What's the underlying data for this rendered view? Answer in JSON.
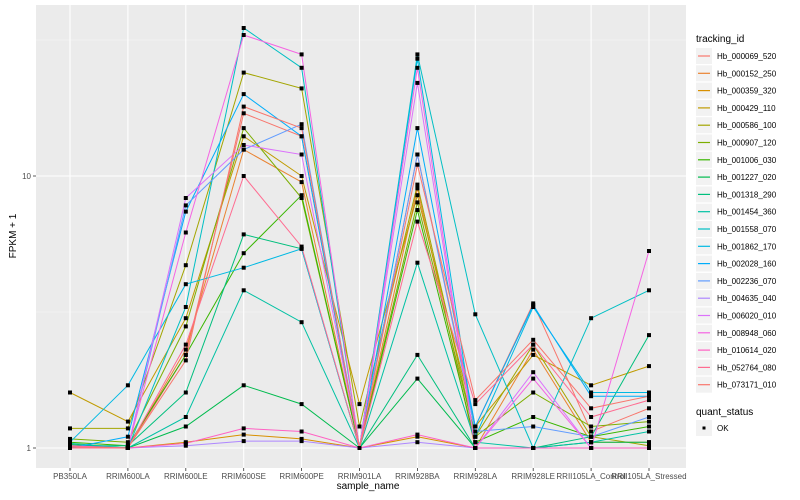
{
  "chart_data": {
    "type": "line",
    "xlabel": "sample_name",
    "ylabel": "FPKM + 1",
    "yscale": "log10",
    "ylim": [
      0.85,
      42
    ],
    "yticks": [
      1,
      10
    ],
    "ytick_labels": [
      "1",
      "10"
    ],
    "categories": [
      "PB350LA",
      "RRIM600LA",
      "RRIM600LE",
      "RRIM600SE",
      "RRIM600PE",
      "RRIM901LA",
      "RRIM928BA",
      "RRIM928LA",
      "RRIM928LE",
      "RRII105LA_Control",
      "RRII105LA_Stressed"
    ],
    "legend": {
      "position": "right",
      "color_title": "tracking_id",
      "shape_title": "quant_status",
      "shape_entries": [
        "OK"
      ]
    },
    "series": [
      {
        "name": "Hb_000069_520",
        "color": "#F8766D",
        "values": [
          1.02,
          1.0,
          2.2,
          17,
          14,
          1.0,
          12,
          1.2,
          3.4,
          1.15,
          1.4
        ]
      },
      {
        "name": "Hb_000152_250",
        "color": "#EA8331",
        "values": [
          1.01,
          1.0,
          2.3,
          12.5,
          9.5,
          1.0,
          9.0,
          1.0,
          2.3,
          1.05,
          1.05
        ]
      },
      {
        "name": "Hb_000359_320",
        "color": "#D89000",
        "values": [
          1.0,
          1.0,
          1.05,
          1.12,
          1.08,
          1.0,
          1.1,
          1.0,
          1.0,
          1.0,
          1.0
        ]
      },
      {
        "name": "Hb_000429_110",
        "color": "#C09B00",
        "values": [
          1.6,
          1.25,
          3.0,
          14,
          10,
          1.45,
          8.5,
          1.2,
          2.2,
          1.7,
          2.0
        ]
      },
      {
        "name": "Hb_000586_100",
        "color": "#A3A500",
        "values": [
          1.18,
          1.18,
          4.7,
          24,
          21,
          1.2,
          9.3,
          1.1,
          2.4,
          1.1,
          1.02
        ]
      },
      {
        "name": "Hb_000907_120",
        "color": "#7CAE00",
        "values": [
          1.08,
          1.05,
          2.8,
          15,
          8.3,
          1.0,
          8.0,
          1.1,
          1.6,
          1.2,
          1.25
        ]
      },
      {
        "name": "Hb_001006_030",
        "color": "#39B600",
        "values": [
          1.05,
          1.02,
          2.2,
          5.2,
          8.5,
          1.0,
          7.5,
          1.05,
          1.3,
          1.1,
          1.2
        ]
      },
      {
        "name": "Hb_001227_020",
        "color": "#00BB4E",
        "values": [
          1.03,
          1.0,
          1.2,
          1.7,
          1.45,
          1.0,
          1.8,
          1.0,
          1.0,
          1.05,
          1.05
        ]
      },
      {
        "name": "Hb_001318_290",
        "color": "#00BF7D",
        "values": [
          1.02,
          1.02,
          1.6,
          6.1,
          5.4,
          1.0,
          2.2,
          1.0,
          1.0,
          1.1,
          2.6
        ]
      },
      {
        "name": "Hb_001454_360",
        "color": "#00C1A3",
        "values": [
          1.04,
          1.0,
          1.3,
          3.8,
          2.9,
          1.0,
          4.8,
          1.05,
          1.0,
          1.05,
          1.15
        ]
      },
      {
        "name": "Hb_001558_070",
        "color": "#00BFC4",
        "values": [
          1.0,
          1.0,
          3.3,
          35,
          25,
          1.0,
          28,
          3.1,
          1.0,
          3.0,
          3.8
        ]
      },
      {
        "name": "Hb_001862_170",
        "color": "#00B9E3",
        "values": [
          1.05,
          1.7,
          4.0,
          4.6,
          5.4,
          1.0,
          27,
          1.1,
          3.3,
          1.6,
          1.6
        ]
      },
      {
        "name": "Hb_002028_160",
        "color": "#00ADFA",
        "values": [
          1.0,
          1.1,
          7.4,
          20,
          14,
          1.0,
          15,
          1.2,
          3.35,
          1.55,
          1.55
        ]
      },
      {
        "name": "Hb_002236_070",
        "color": "#619CFF",
        "values": [
          1.0,
          1.0,
          7.8,
          12.5,
          15.5,
          1.0,
          12,
          1.15,
          1.2,
          1.1,
          1.3
        ]
      },
      {
        "name": "Hb_004635_040",
        "color": "#AE87FF",
        "values": [
          1.0,
          1.0,
          1.02,
          1.06,
          1.06,
          1.0,
          1.05,
          1.0,
          1.0,
          1.0,
          1.0
        ]
      },
      {
        "name": "Hb_006020_010",
        "color": "#DB72FB",
        "values": [
          1.0,
          1.0,
          8.3,
          13,
          12,
          1.0,
          22,
          1.0,
          1.9,
          1.0,
          1.0
        ]
      },
      {
        "name": "Hb_008948_060",
        "color": "#F564E3",
        "values": [
          1.0,
          1.0,
          6.2,
          33,
          28,
          1.0,
          25,
          1.0,
          1.8,
          1.0,
          5.3
        ]
      },
      {
        "name": "Hb_010614_020",
        "color": "#FF61C3",
        "values": [
          1.02,
          1.0,
          1.04,
          1.18,
          1.15,
          1.0,
          1.12,
          1.0,
          1.0,
          1.0,
          1.0
        ]
      },
      {
        "name": "Hb_052764_080",
        "color": "#FF6C91",
        "values": [
          1.0,
          1.0,
          2.4,
          10,
          5.5,
          1.0,
          6.8,
          1.45,
          2.4,
          1.3,
          1.5
        ]
      },
      {
        "name": "Hb_073171_010",
        "color": "#F8766D",
        "values": [
          1.01,
          1.0,
          2.1,
          18,
          15,
          1.0,
          11,
          1.5,
          2.5,
          1.4,
          1.55
        ]
      }
    ]
  }
}
